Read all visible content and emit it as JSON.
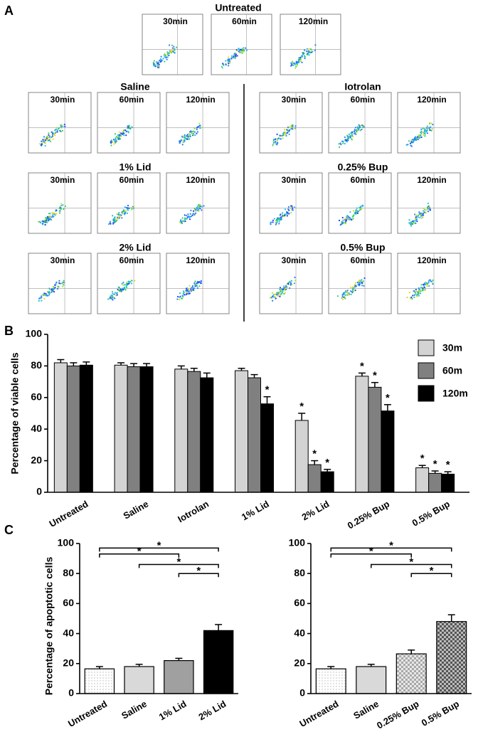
{
  "panel_a": {
    "label": "A",
    "time_labels": [
      "30min",
      "60min",
      "120min"
    ],
    "groups": [
      "Untreated",
      "Saline",
      "Iotrolan",
      "1% Lid",
      "0.25% Bup",
      "2% Lid",
      "0.5% Bup"
    ]
  },
  "chart_data": [
    {
      "type": "grouped_bar",
      "panel": "B",
      "ylabel": "Percentage of viable cells",
      "categories": [
        "Untreated",
        "Saline",
        "Iotrolan",
        "1% Lid",
        "2% Lid",
        "0.25% Bup",
        "0.5% Bup"
      ],
      "series": [
        {
          "name": "30m",
          "color": "#d3d3d3",
          "values": [
            82,
            80.5,
            78,
            77,
            45.5,
            73.5,
            15.5
          ],
          "errors": [
            2,
            1.5,
            2,
            1.5,
            4.5,
            2,
            1.5
          ]
        },
        {
          "name": "60m",
          "color": "#808080",
          "values": [
            80,
            79.5,
            76.5,
            72.5,
            17.5,
            66.5,
            12
          ],
          "errors": [
            2,
            2,
            2,
            2,
            2.5,
            3,
            1.5
          ]
        },
        {
          "name": "120m",
          "color": "#000000",
          "values": [
            80.5,
            79.5,
            72.5,
            56,
            13,
            51.5,
            11.5
          ],
          "errors": [
            2,
            2,
            3,
            4.5,
            1.5,
            4,
            1.5
          ]
        }
      ],
      "asterisks": [
        {
          "series": 2,
          "category": 3,
          "text": "*"
        },
        {
          "series": 0,
          "category": 4,
          "text": "*"
        },
        {
          "series": 1,
          "category": 4,
          "text": "*"
        },
        {
          "series": 2,
          "category": 4,
          "text": "*"
        },
        {
          "series": 0,
          "category": 5,
          "text": "*"
        },
        {
          "series": 1,
          "category": 5,
          "text": "*"
        },
        {
          "series": 2,
          "category": 5,
          "text": "*"
        },
        {
          "series": 0,
          "category": 6,
          "text": "*"
        },
        {
          "series": 1,
          "category": 6,
          "text": "*"
        },
        {
          "series": 2,
          "category": 6,
          "text": "*"
        }
      ],
      "ylim": [
        0,
        100
      ],
      "yticks": [
        0,
        20,
        40,
        60,
        80,
        100
      ],
      "legend": "top-right"
    },
    {
      "type": "bar",
      "panel": "C",
      "ylabel": "Percentage of apoptotic cells",
      "categories": [
        "Untreated",
        "Saline",
        "1% Lid",
        "2% Lid"
      ],
      "values": [
        16.5,
        18,
        22,
        42
      ],
      "errors": [
        1.5,
        1.5,
        1.5,
        4
      ],
      "fills": [
        "dots",
        "#d9d9d9",
        "#a0a0a0",
        "#000000"
      ],
      "brackets": [
        {
          "from": 0,
          "to": 3,
          "y": 97,
          "text": "*"
        },
        {
          "from": 0,
          "to": 2,
          "y": 93,
          "text": "*"
        },
        {
          "from": 1,
          "to": 3,
          "y": 86,
          "text": "*"
        },
        {
          "from": 2,
          "to": 3,
          "y": 80,
          "text": "*"
        }
      ],
      "ylim": [
        0,
        100
      ],
      "yticks": [
        0,
        20,
        40,
        60,
        80,
        100
      ]
    },
    {
      "type": "bar",
      "categories": [
        "Untreated",
        "Saline",
        "0.25% Bup",
        "0.5% Bup"
      ],
      "values": [
        16.5,
        18,
        26.5,
        48
      ],
      "errors": [
        1.5,
        1.5,
        2.5,
        4.5
      ],
      "fills": [
        "dots",
        "#d9d9d9",
        "checker-light",
        "checker-dark"
      ],
      "brackets": [
        {
          "from": 0,
          "to": 3,
          "y": 97,
          "text": "*"
        },
        {
          "from": 0,
          "to": 2,
          "y": 93,
          "text": "*"
        },
        {
          "from": 1,
          "to": 3,
          "y": 86,
          "text": "*"
        },
        {
          "from": 2,
          "to": 3,
          "y": 80,
          "text": "*"
        }
      ],
      "ylim": [
        0,
        100
      ],
      "yticks": [
        0,
        20,
        40,
        60,
        80,
        100
      ]
    }
  ]
}
